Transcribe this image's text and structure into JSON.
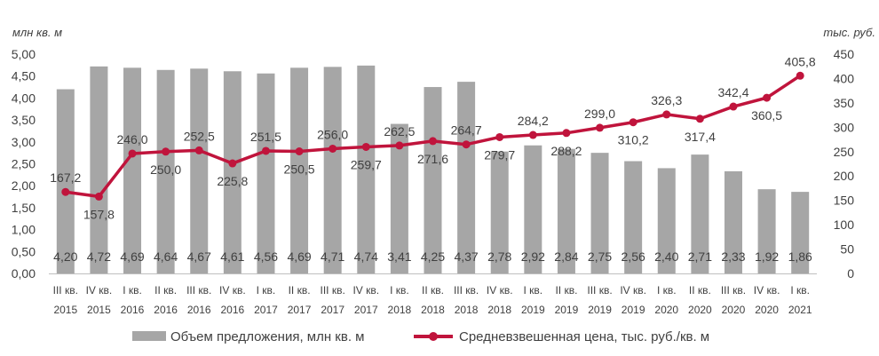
{
  "chart_data": {
    "type": "bar+line",
    "categories": [
      [
        "III кв.",
        "2015"
      ],
      [
        "IV кв.",
        "2015"
      ],
      [
        "I кв.",
        "2016"
      ],
      [
        "II кв.",
        "2016"
      ],
      [
        "III кв.",
        "2016"
      ],
      [
        "IV кв.",
        "2016"
      ],
      [
        "I кв.",
        "2017"
      ],
      [
        "II кв.",
        "2017"
      ],
      [
        "III кв.",
        "2017"
      ],
      [
        "IV кв.",
        "2017"
      ],
      [
        "I кв.",
        "2018"
      ],
      [
        "II кв.",
        "2018"
      ],
      [
        "III кв.",
        "2018"
      ],
      [
        "IV кв.",
        "2018"
      ],
      [
        "I кв.",
        "2019"
      ],
      [
        "II кв.",
        "2019"
      ],
      [
        "III кв.",
        "2019"
      ],
      [
        "IV кв.",
        "2019"
      ],
      [
        "I кв.",
        "2020"
      ],
      [
        "II кв.",
        "2020"
      ],
      [
        "III кв.",
        "2020"
      ],
      [
        "IV кв.",
        "2020"
      ],
      [
        "I кв.",
        "2021"
      ]
    ],
    "series": [
      {
        "name": "Объем предложения, млн кв. м",
        "type": "bar",
        "axis": "left",
        "color": "#a6a6a6",
        "values": [
          4.2,
          4.72,
          4.69,
          4.64,
          4.67,
          4.61,
          4.56,
          4.69,
          4.71,
          4.74,
          3.41,
          4.25,
          4.37,
          2.78,
          2.92,
          2.84,
          2.75,
          2.56,
          2.4,
          2.71,
          2.33,
          1.92,
          1.86
        ],
        "labels": [
          "4,20",
          "4,72",
          "4,69",
          "4,64",
          "4,67",
          "4,61",
          "4,56",
          "4,69",
          "4,71",
          "4,74",
          "3,41",
          "4,25",
          "4,37",
          "2,78",
          "2,92",
          "2,84",
          "2,75",
          "2,56",
          "2,40",
          "2,71",
          "2,33",
          "1,92",
          "1,86"
        ]
      },
      {
        "name": "Средневзвешенная цена, тыс. руб./кв. м",
        "type": "line",
        "axis": "right",
        "color": "#c0143c",
        "values": [
          167.2,
          157.8,
          246.0,
          250.0,
          252.5,
          225.8,
          251.5,
          250.5,
          256.0,
          259.7,
          262.5,
          271.6,
          264.7,
          279.7,
          284.2,
          288.2,
          299.0,
          310.2,
          326.3,
          317.4,
          342.4,
          360.5,
          405.8
        ],
        "labels": [
          "167,2",
          "157,8",
          "246,0",
          "250,0",
          "252,5",
          "225,8",
          "251,5",
          "250,5",
          "256,0",
          "259,7",
          "262,5",
          "271,6",
          "264,7",
          "279,7",
          "284,2",
          "288,2",
          "299,0",
          "310,2",
          "326,3",
          "317,4",
          "342,4",
          "360,5",
          "405,8"
        ],
        "label_position": [
          "above",
          "below",
          "above",
          "below",
          "above",
          "below",
          "above",
          "below",
          "above",
          "below",
          "above",
          "below",
          "above",
          "below",
          "above",
          "below",
          "above",
          "below",
          "above",
          "below",
          "above",
          "below",
          "above"
        ]
      }
    ],
    "y_left": {
      "label": "млн кв. м",
      "ylim": [
        0,
        5
      ],
      "ticks": [
        "0,00",
        "0,50",
        "1,00",
        "1,50",
        "2,00",
        "2,50",
        "3,00",
        "3,50",
        "4,00",
        "4,50",
        "5,00"
      ]
    },
    "y_right": {
      "label": "тыс. руб.",
      "ylim": [
        0,
        450
      ],
      "ticks": [
        "0",
        "50",
        "100",
        "150",
        "200",
        "250",
        "300",
        "350",
        "400",
        "450"
      ]
    },
    "grid": false,
    "legend": "bottom"
  }
}
